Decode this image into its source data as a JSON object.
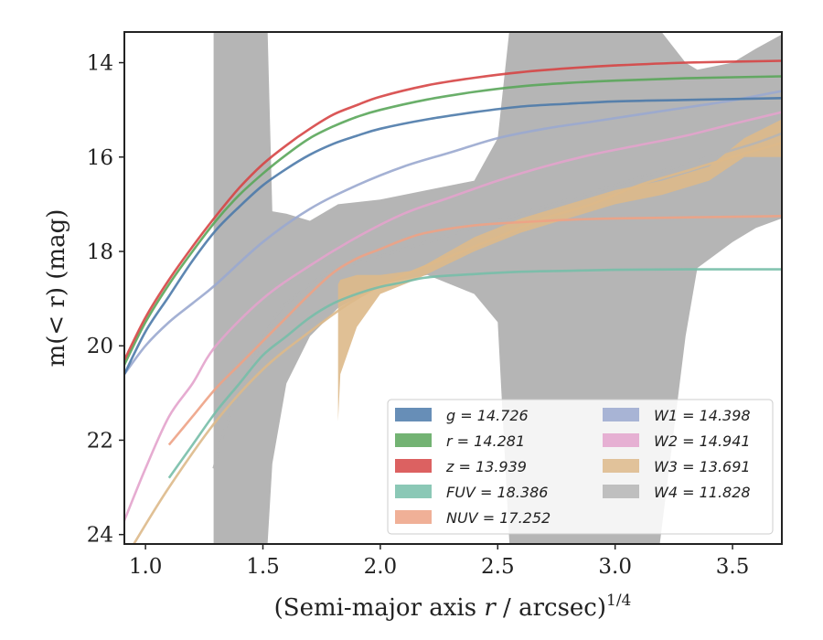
{
  "chart_data": {
    "type": "line",
    "xlabel_main": "(Semi-major axis ",
    "xlabel_var": "r",
    "xlabel_unit": " / arcsec)",
    "xlabel_sup": "1/4",
    "ylabel_main": "m(< r) (mag)",
    "xlim": [
      0.91,
      3.71
    ],
    "ylim": [
      24.2,
      13.35
    ],
    "x_ticks": [
      1.0,
      1.5,
      2.0,
      2.5,
      3.0,
      3.5
    ],
    "x_tick_labels": [
      "1.0",
      "1.5",
      "2.0",
      "2.5",
      "3.0",
      "3.5"
    ],
    "y_ticks": [
      14,
      16,
      18,
      20,
      22,
      24
    ],
    "y_tick_labels": [
      "14",
      "16",
      "18",
      "20",
      "22",
      "24"
    ],
    "legend_position": "lower-right",
    "series": [
      {
        "key": "W4",
        "name": "W4 = 11.828",
        "color": "#b5b5b5",
        "x": [
          1.29,
          1.35,
          1.45,
          1.55,
          1.65,
          1.8,
          2.0,
          2.2,
          2.4,
          2.6,
          2.8,
          3.0,
          3.2,
          3.4,
          3.6,
          3.71
        ],
        "y": [
          22.6,
          21.6,
          20.4,
          19.4,
          18.9,
          18.4,
          18.1,
          17.8,
          17.5,
          17.2,
          16.9,
          16.6,
          16.3,
          16.0,
          15.7,
          15.5
        ],
        "band_x": [
          1.29,
          1.29,
          1.52,
          1.54,
          1.6,
          1.7,
          1.82,
          2.0,
          2.2,
          2.4,
          2.5,
          2.55,
          3.0,
          3.19,
          3.3,
          3.35,
          3.5,
          3.6,
          3.71
        ],
        "band_upper": [
          13.3,
          13.3,
          13.3,
          17.15,
          17.2,
          17.35,
          17.0,
          16.9,
          16.7,
          16.5,
          15.6,
          13.3,
          13.3,
          13.3,
          14.0,
          14.15,
          14.0,
          13.7,
          13.4
        ],
        "band_lower": [
          24.2,
          24.2,
          24.2,
          22.5,
          20.8,
          19.8,
          19.2,
          18.7,
          18.5,
          18.9,
          19.5,
          24.2,
          24.2,
          24.2,
          19.8,
          18.35,
          17.8,
          17.5,
          17.3
        ]
      },
      {
        "key": "W3",
        "name": "W3 = 13.691",
        "color": "#ddb98a",
        "x": [
          0.95,
          1.1,
          1.3,
          1.5,
          1.7,
          1.9,
          2.1,
          2.3,
          2.5,
          2.7,
          2.9,
          3.1,
          3.3,
          3.5,
          3.71
        ],
        "y": [
          24.2,
          23.0,
          21.6,
          20.5,
          19.7,
          19.0,
          18.5,
          18.1,
          17.7,
          17.3,
          17.0,
          16.6,
          16.3,
          16.0,
          15.7
        ],
        "band_x": [
          1.82,
          1.83,
          1.9,
          2.0,
          2.15,
          2.4,
          2.6,
          2.8,
          3.0,
          3.2,
          3.4,
          3.55,
          3.71
        ],
        "band_upper": [
          18.7,
          18.6,
          18.5,
          18.5,
          18.4,
          17.7,
          17.3,
          17.0,
          16.7,
          16.5,
          16.2,
          15.6,
          15.2
        ],
        "band_lower": [
          21.6,
          20.6,
          19.6,
          18.9,
          18.6,
          18.0,
          17.6,
          17.3,
          17.0,
          16.8,
          16.5,
          16.0,
          16.0
        ]
      },
      {
        "key": "W1",
        "name": "W1 = 14.398",
        "color": "#9aa8cf",
        "x": [
          0.91,
          1.0,
          1.1,
          1.2,
          1.3,
          1.5,
          1.7,
          1.9,
          2.1,
          2.3,
          2.5,
          2.7,
          2.9,
          3.1,
          3.3,
          3.5,
          3.71
        ],
        "y": [
          20.6,
          20.0,
          19.5,
          19.1,
          18.7,
          17.8,
          17.1,
          16.6,
          16.2,
          15.9,
          15.6,
          15.4,
          15.25,
          15.1,
          14.95,
          14.8,
          14.6
        ]
      },
      {
        "key": "W2",
        "name": "W2 = 14.941",
        "color": "#e3a3cc",
        "x": [
          0.91,
          1.0,
          1.1,
          1.2,
          1.3,
          1.5,
          1.7,
          1.9,
          2.1,
          2.3,
          2.5,
          2.7,
          2.9,
          3.1,
          3.3,
          3.5,
          3.71
        ],
        "y": [
          23.7,
          22.6,
          21.5,
          20.8,
          20.0,
          19.0,
          18.3,
          17.7,
          17.2,
          16.85,
          16.5,
          16.2,
          15.95,
          15.75,
          15.55,
          15.3,
          15.05
        ]
      },
      {
        "key": "NUV",
        "name": "NUV = 17.252",
        "color": "#eda285",
        "x": [
          1.1,
          1.2,
          1.3,
          1.4,
          1.5,
          1.6,
          1.7,
          1.8,
          1.9,
          2.0,
          2.1,
          2.2,
          2.4,
          2.6,
          2.8,
          3.0,
          3.3,
          3.71
        ],
        "y": [
          22.1,
          21.5,
          20.9,
          20.4,
          19.9,
          19.4,
          18.9,
          18.45,
          18.15,
          17.95,
          17.75,
          17.6,
          17.45,
          17.38,
          17.33,
          17.3,
          17.28,
          17.25
        ]
      },
      {
        "key": "FUV",
        "name": "FUV = 18.386",
        "color": "#77bea9",
        "x": [
          1.1,
          1.2,
          1.3,
          1.4,
          1.5,
          1.6,
          1.7,
          1.8,
          1.9,
          2.0,
          2.1,
          2.2,
          2.4,
          2.6,
          2.8,
          3.0,
          3.3,
          3.71
        ],
        "y": [
          22.8,
          22.1,
          21.4,
          20.8,
          20.2,
          19.8,
          19.4,
          19.1,
          18.9,
          18.75,
          18.65,
          18.55,
          18.48,
          18.43,
          18.41,
          18.39,
          18.38,
          18.38
        ]
      },
      {
        "key": "g",
        "name": "g = 14.726",
        "color": "#4c7aaa",
        "x": [
          0.91,
          1.0,
          1.1,
          1.2,
          1.3,
          1.4,
          1.5,
          1.6,
          1.7,
          1.8,
          1.9,
          2.0,
          2.2,
          2.4,
          2.6,
          2.8,
          3.0,
          3.3,
          3.71
        ],
        "y": [
          20.6,
          19.7,
          18.95,
          18.2,
          17.55,
          17.05,
          16.6,
          16.25,
          15.95,
          15.72,
          15.55,
          15.4,
          15.2,
          15.05,
          14.93,
          14.87,
          14.82,
          14.79,
          14.75
        ]
      },
      {
        "key": "r",
        "name": "r = 14.281",
        "color": "#5aa65a",
        "x": [
          0.91,
          1.0,
          1.1,
          1.2,
          1.3,
          1.4,
          1.5,
          1.6,
          1.7,
          1.8,
          1.9,
          2.0,
          2.2,
          2.4,
          2.6,
          2.8,
          3.0,
          3.3,
          3.71
        ],
        "y": [
          20.4,
          19.5,
          18.7,
          18.0,
          17.35,
          16.8,
          16.35,
          15.95,
          15.6,
          15.35,
          15.15,
          15.0,
          14.78,
          14.62,
          14.5,
          14.43,
          14.38,
          14.33,
          14.29
        ]
      },
      {
        "key": "z",
        "name": "z = 13.939",
        "color": "#d64545",
        "x": [
          0.91,
          1.0,
          1.1,
          1.2,
          1.3,
          1.4,
          1.5,
          1.6,
          1.7,
          1.8,
          1.9,
          2.0,
          2.2,
          2.4,
          2.6,
          2.8,
          3.0,
          3.3,
          3.71
        ],
        "y": [
          20.3,
          19.4,
          18.6,
          17.9,
          17.25,
          16.65,
          16.15,
          15.75,
          15.4,
          15.1,
          14.9,
          14.72,
          14.48,
          14.32,
          14.2,
          14.12,
          14.06,
          14.0,
          13.96
        ]
      }
    ],
    "legend_columns": [
      [
        {
          "label": "g = 14.726",
          "key": "g"
        },
        {
          "label": "r = 14.281",
          "key": "r"
        },
        {
          "label": "z = 13.939",
          "key": "z"
        },
        {
          "label": "FUV = 18.386",
          "key": "FUV"
        },
        {
          "label": "NUV = 17.252",
          "key": "NUV"
        }
      ],
      [
        {
          "label": "W1 = 14.398",
          "key": "W1"
        },
        {
          "label": "W2 = 14.941",
          "key": "W2"
        },
        {
          "label": "W3 = 13.691",
          "key": "W3"
        },
        {
          "label": "W4 = 11.828",
          "key": "W4"
        }
      ]
    ]
  }
}
